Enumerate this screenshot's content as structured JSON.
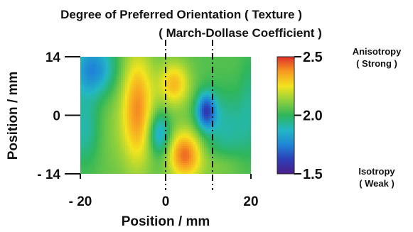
{
  "chart_data": {
    "type": "heatmap",
    "title": "Degree of Preferred Orientation ( Texture )",
    "subtitle": "( March-Dollase Coefficient )",
    "xlabel": "Position / mm",
    "ylabel": "Position / mm",
    "xlim": [
      -20,
      20
    ],
    "ylim": [
      -14,
      14
    ],
    "x_ticks": [
      "- 20",
      "0",
      "20"
    ],
    "x_tick_values": [
      -20,
      0,
      20
    ],
    "y_ticks": [
      "14",
      "0",
      "- 14"
    ],
    "y_tick_values": [
      14,
      0,
      -14
    ],
    "colorbar": {
      "min": 1.5,
      "max": 2.5,
      "ticks": [
        "2.5",
        "2.0",
        "1.5"
      ],
      "tick_values": [
        2.5,
        2.0,
        1.5
      ],
      "top_label": "Anisotropy",
      "top_sublabel": "( Strong )",
      "bottom_label": "Isotropy",
      "bottom_sublabel": "( Weak )",
      "colors": [
        "#4b1e8a",
        "#2c3fb8",
        "#1f86d6",
        "#22b7c4",
        "#2fb65a",
        "#8fd03c",
        "#f4e41e",
        "#f79a21",
        "#e0302a"
      ]
    },
    "reference_lines_x": [
      0,
      11
    ],
    "base_value": 2.05,
    "features": [
      {
        "x": -6.5,
        "y": 1.5,
        "sx": 2.6,
        "sy": 9.5,
        "amplitude": 0.33
      },
      {
        "x": 2.0,
        "y": 7.5,
        "sx": 2.6,
        "sy": 3.8,
        "amplitude": 0.27
      },
      {
        "x": 4.5,
        "y": -9.5,
        "sx": 2.8,
        "sy": 4.2,
        "amplitude": 0.38
      },
      {
        "x": -17.0,
        "y": 11.0,
        "sx": 3.5,
        "sy": 4.5,
        "amplitude": -0.3
      },
      {
        "x": -19.0,
        "y": -3.0,
        "sx": 2.5,
        "sy": 6.0,
        "amplitude": -0.15
      },
      {
        "x": -1.5,
        "y": -4.5,
        "sx": 1.8,
        "sy": 3.5,
        "amplitude": -0.25
      },
      {
        "x": 9.5,
        "y": 1.0,
        "sx": 1.6,
        "sy": 3.0,
        "amplitude": -0.4
      },
      {
        "x": 14.5,
        "y": -3.0,
        "sx": 4.0,
        "sy": 6.0,
        "amplitude": -0.14
      },
      {
        "x": 19.5,
        "y": 3.0,
        "sx": 1.5,
        "sy": 8.0,
        "amplitude": -0.08
      },
      {
        "x": 13.0,
        "y": -12.0,
        "sx": 3.5,
        "sy": 2.5,
        "amplitude": 0.08
      },
      {
        "x": -12.0,
        "y": -3.0,
        "sx": 3.5,
        "sy": 9.0,
        "amplitude": 0.05
      }
    ]
  }
}
